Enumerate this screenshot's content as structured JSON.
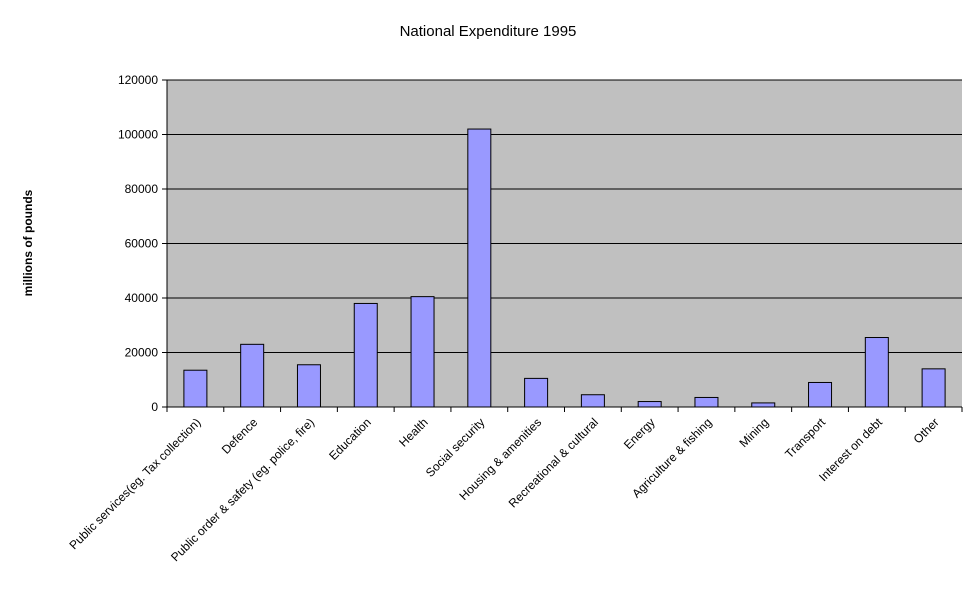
{
  "chart_data": {
    "type": "bar",
    "title": "National Expenditure 1995",
    "xlabel": "",
    "ylabel": "millions of pounds",
    "ylim": [
      0,
      120000
    ],
    "yticks": [
      "0",
      "20000",
      "40000",
      "60000",
      "80000",
      "100000",
      "120000"
    ],
    "grid": true,
    "legend": "none",
    "colors": {
      "plot_background": "#c0c0c0",
      "bar_fill": "#9999ff",
      "bar_stroke": "#000000",
      "gridline": "#000000"
    },
    "categories": [
      "Public services(eg. Tax collection)",
      "Defence",
      "Public order & safety (eg. police, fire)",
      "Education",
      "Health",
      "Social security",
      "Housing & amenities",
      "Recreational & cultural",
      "Energy",
      "Agriculture & fishing",
      "Mining",
      "Transport",
      "Interest on debt",
      "Other"
    ],
    "values": [
      13500,
      23000,
      15500,
      38000,
      40500,
      102000,
      10500,
      4500,
      2000,
      3500,
      1500,
      9000,
      25500,
      14000
    ]
  }
}
